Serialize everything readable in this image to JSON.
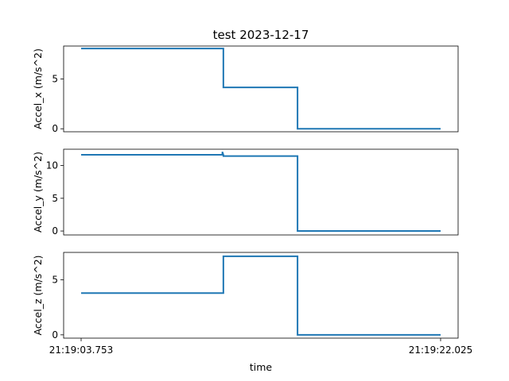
{
  "title": "test  2023-12-17",
  "xlabel": "time",
  "x_tick_labels": [
    "21:19:03.753",
    "21:19:22.025"
  ],
  "line_color": "#1f77b4",
  "chart_data": [
    {
      "type": "line",
      "ylabel": "Accel_x  (m/s^2)",
      "xlim": [
        0,
        18.272
      ],
      "ylim": [
        -0.3,
        8.3
      ],
      "yticks": [
        0,
        5
      ],
      "grid": false,
      "x": [
        0,
        7.23,
        7.23,
        11.0,
        11.0,
        18.272
      ],
      "y": [
        8.05,
        8.05,
        4.15,
        4.15,
        0.0,
        0.0
      ]
    },
    {
      "type": "line",
      "ylabel": "Accel_y  (m/s^2)",
      "xlim": [
        0,
        18.272
      ],
      "ylim": [
        -0.6,
        12.5
      ],
      "yticks": [
        0,
        5,
        10
      ],
      "grid": false,
      "x": [
        0,
        7.18,
        7.18,
        7.23,
        7.23,
        11.0,
        11.0,
        18.272
      ],
      "y": [
        11.65,
        11.65,
        12.1,
        11.65,
        11.45,
        11.45,
        0.0,
        0.0
      ]
    },
    {
      "type": "line",
      "ylabel": "Accel_z  (m/s^2)",
      "xlim": [
        0,
        18.272
      ],
      "ylim": [
        -0.3,
        7.5
      ],
      "yticks": [
        0,
        5
      ],
      "grid": false,
      "x": [
        0,
        7.23,
        7.23,
        11.0,
        11.0,
        18.272
      ],
      "y": [
        3.8,
        3.8,
        7.15,
        7.15,
        0.0,
        0.0
      ]
    }
  ]
}
